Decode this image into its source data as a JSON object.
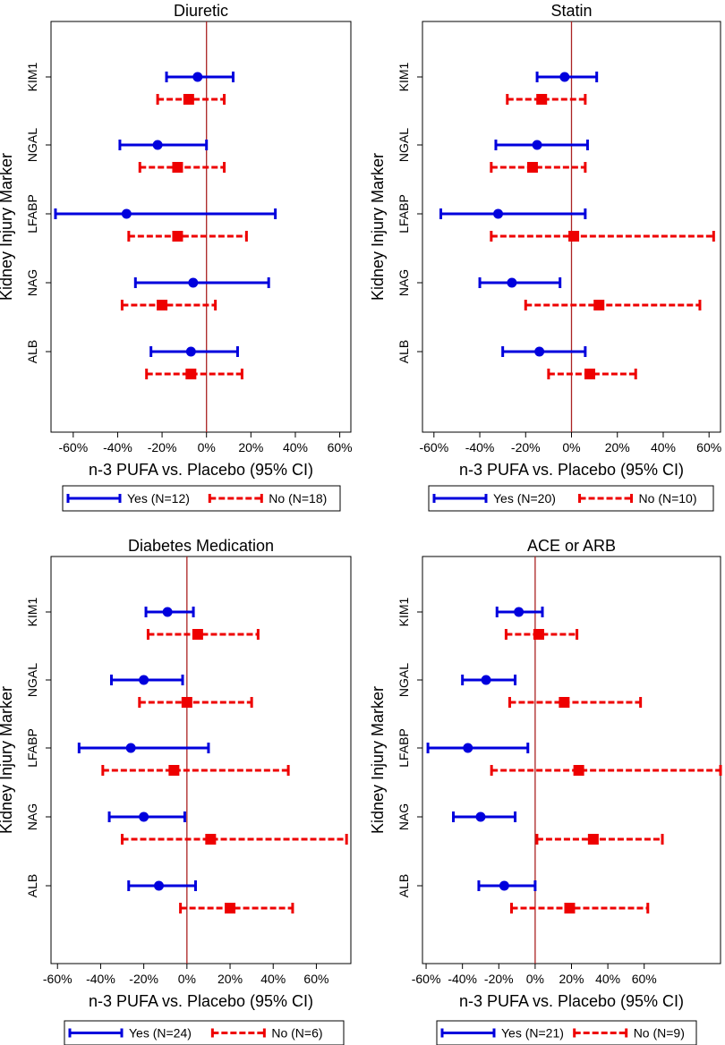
{
  "colors": {
    "yes": "#0000dd",
    "no": "#ee0000",
    "zero_line": "#aa2222",
    "frame": "#000000"
  },
  "chart_data": [
    {
      "type": "forest",
      "title": "Diuretic",
      "xlabel": "n-3 PUFA vs. Placebo (95% CI)",
      "ylabel": "Kidney Injury Marker",
      "categories": [
        "KIM1",
        "NGAL",
        "LFABP",
        "NAG",
        "ALB"
      ],
      "xlim": [
        -70,
        65
      ],
      "xticks": [
        -60,
        -40,
        -20,
        0,
        20,
        40,
        60
      ],
      "xtick_labels": [
        "-60%",
        "-40%",
        "-20%",
        "0%",
        "20%",
        "40%",
        "60%"
      ],
      "legend_position": "bottom",
      "series": [
        {
          "name": "Yes (N=12)",
          "marker": "circle",
          "style": "solid",
          "estimate": [
            -4,
            -22,
            -36,
            -6,
            -7
          ],
          "lower": [
            -18,
            -39,
            -68,
            -32,
            -25
          ],
          "upper": [
            12,
            0,
            31,
            28,
            14
          ]
        },
        {
          "name": "No (N=18)",
          "marker": "square",
          "style": "dashed",
          "estimate": [
            -8,
            -13,
            -13,
            -20,
            -7
          ],
          "lower": [
            -22,
            -30,
            -35,
            -38,
            -27
          ],
          "upper": [
            8,
            8,
            18,
            4,
            16
          ]
        }
      ]
    },
    {
      "type": "forest",
      "title": "Statin",
      "xlabel": "n-3 PUFA vs. Placebo (95% CI)",
      "ylabel": "Kidney Injury Marker",
      "categories": [
        "KIM1",
        "NGAL",
        "LFABP",
        "NAG",
        "ALB"
      ],
      "xlim": [
        -65,
        65
      ],
      "xticks": [
        -60,
        -40,
        -20,
        0,
        20,
        40,
        60
      ],
      "xtick_labels": [
        "-60%",
        "-40%",
        "-20%",
        "0%",
        "20%",
        "40%",
        "60%"
      ],
      "legend_position": "bottom",
      "series": [
        {
          "name": "Yes (N=20)",
          "marker": "circle",
          "style": "solid",
          "estimate": [
            -3,
            -15,
            -32,
            -26,
            -14
          ],
          "lower": [
            -15,
            -33,
            -57,
            -40,
            -30
          ],
          "upper": [
            11,
            7,
            6,
            -5,
            6
          ]
        },
        {
          "name": "No (N=10)",
          "marker": "square",
          "style": "dashed",
          "estimate": [
            -13,
            -17,
            1,
            12,
            8
          ],
          "lower": [
            -28,
            -35,
            -35,
            -20,
            -10
          ],
          "upper": [
            6,
            6,
            62,
            56,
            28
          ]
        }
      ]
    },
    {
      "type": "forest",
      "title": "Diabetes Medication",
      "xlabel": "n-3 PUFA vs. Placebo (95% CI)",
      "ylabel": "Kidney Injury Marker",
      "categories": [
        "KIM1",
        "NGAL",
        "LFABP",
        "NAG",
        "ALB"
      ],
      "xlim": [
        -63,
        76
      ],
      "xticks": [
        -60,
        -40,
        -20,
        0,
        20,
        40,
        60
      ],
      "xtick_labels": [
        "-60%",
        "-40%",
        "-20%",
        "0%",
        "20%",
        "40%",
        "60%"
      ],
      "legend_position": "bottom",
      "series": [
        {
          "name": "Yes (N=24)",
          "marker": "circle",
          "style": "solid",
          "estimate": [
            -9,
            -20,
            -26,
            -20,
            -13
          ],
          "lower": [
            -19,
            -35,
            -50,
            -36,
            -27
          ],
          "upper": [
            3,
            -2,
            10,
            -1,
            4
          ]
        },
        {
          "name": "No (N=6)",
          "marker": "square",
          "style": "dashed",
          "estimate": [
            5,
            0,
            -6,
            11,
            20
          ],
          "lower": [
            -18,
            -22,
            -39,
            -30,
            -3
          ],
          "upper": [
            33,
            30,
            47,
            74,
            49
          ]
        }
      ]
    },
    {
      "type": "forest",
      "title": "ACE or ARB",
      "xlabel": "n-3 PUFA vs. Placebo (95% CI)",
      "ylabel": "Kidney Injury Marker",
      "categories": [
        "KIM1",
        "NGAL",
        "LFABP",
        "NAG",
        "ALB"
      ],
      "xlim": [
        -62,
        102
      ],
      "xticks": [
        -60,
        -40,
        -20,
        0,
        20,
        40,
        60
      ],
      "xtick_labels": [
        "-60%",
        "-40%",
        "-20%",
        "0%",
        "20%",
        "40%",
        "60%"
      ],
      "legend_position": "bottom",
      "series": [
        {
          "name": "Yes (N=21)",
          "marker": "circle",
          "style": "solid",
          "estimate": [
            -9,
            -27,
            -37,
            -30,
            -17
          ],
          "lower": [
            -21,
            -40,
            -59,
            -45,
            -31
          ],
          "upper": [
            4,
            -11,
            -4,
            -11,
            0
          ]
        },
        {
          "name": "No (N=9)",
          "marker": "square",
          "style": "dashed",
          "estimate": [
            2,
            16,
            24,
            32,
            19
          ],
          "lower": [
            -16,
            -14,
            -24,
            1,
            -13
          ],
          "upper": [
            23,
            58,
            102,
            70,
            62
          ]
        }
      ]
    }
  ]
}
